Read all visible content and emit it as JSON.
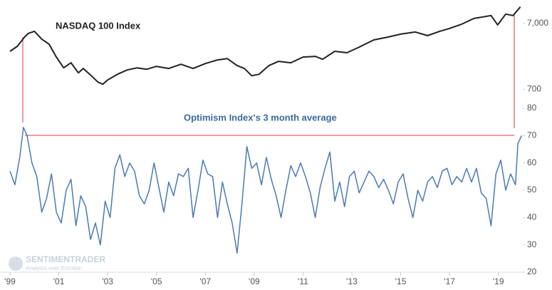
{
  "chart_data": [
    {
      "type": "line",
      "title": "NASDAQ 100 Index",
      "log_scale": true,
      "xlim": [
        1999,
        2020
      ],
      "ylim": [
        550,
        14000
      ],
      "yticks": [
        700,
        {
          "value": 7000,
          "label": "7,000"
        }
      ],
      "series": [
        {
          "name": "NASDAQ 100 Index",
          "color": "#222222",
          "x": [
            1999.0,
            1999.3,
            1999.6,
            1999.75,
            2000.0,
            2000.3,
            2000.6,
            2000.9,
            2001.2,
            2001.5,
            2001.8,
            2002.0,
            2002.3,
            2002.6,
            2002.8,
            2003.0,
            2003.4,
            2003.8,
            2004.2,
            2004.6,
            2005.0,
            2005.5,
            2006.0,
            2006.5,
            2007.0,
            2007.5,
            2007.9,
            2008.3,
            2008.6,
            2008.9,
            2009.2,
            2009.6,
            2010.0,
            2010.5,
            2011.0,
            2011.5,
            2011.8,
            2012.3,
            2012.8,
            2013.3,
            2013.9,
            2014.5,
            2015.0,
            2015.6,
            2016.1,
            2016.6,
            2017.0,
            2017.5,
            2018.0,
            2018.7,
            2018.97,
            2019.3,
            2019.6,
            2019.9
          ],
          "values": [
            2640,
            3140,
            4350,
            4930,
            5310,
            4040,
            3390,
            2160,
            1480,
            1770,
            1245,
            1450,
            1155,
            900,
            835,
            970,
            1185,
            1375,
            1480,
            1410,
            1560,
            1450,
            1680,
            1450,
            1720,
            1955,
            2050,
            1600,
            1450,
            1125,
            1185,
            1600,
            1860,
            1770,
            2160,
            2210,
            2000,
            2640,
            2510,
            3060,
            3935,
            4350,
            4810,
            5190,
            4570,
            5310,
            5870,
            6825,
            8330,
            9210,
            6650,
            9690,
            9210,
            12450
          ]
        }
      ]
    },
    {
      "type": "line",
      "title": "Optimism Index's 3 month average",
      "xlim": [
        1999,
        2020
      ],
      "ylim": [
        20,
        80
      ],
      "yticks": [
        20,
        30,
        40,
        50,
        60,
        70,
        80
      ],
      "xticks": [
        {
          "value": 1999,
          "label": "'99"
        },
        {
          "value": 2001,
          "label": "'01"
        },
        {
          "value": 2003,
          "label": "'03"
        },
        {
          "value": 2005,
          "label": "'05"
        },
        {
          "value": 2007,
          "label": "'07"
        },
        {
          "value": 2009,
          "label": "'09"
        },
        {
          "value": 2011,
          "label": "'11"
        },
        {
          "value": 2013,
          "label": "'13"
        },
        {
          "value": 2015,
          "label": "'15"
        },
        {
          "value": 2017,
          "label": "'17"
        },
        {
          "value": 2019,
          "label": "'19"
        }
      ],
      "series": [
        {
          "name": "Optimism Index's 3 month average",
          "color": "#4a7ab5",
          "x": [
            1999.0,
            1999.2,
            1999.4,
            1999.55,
            1999.7,
            1999.9,
            2000.1,
            2000.3,
            2000.5,
            2000.7,
            2000.9,
            2001.1,
            2001.3,
            2001.5,
            2001.7,
            2001.9,
            2002.1,
            2002.3,
            2002.5,
            2002.7,
            2002.9,
            2003.1,
            2003.3,
            2003.5,
            2003.7,
            2003.9,
            2004.1,
            2004.3,
            2004.5,
            2004.7,
            2004.9,
            2005.1,
            2005.3,
            2005.5,
            2005.7,
            2005.9,
            2006.1,
            2006.3,
            2006.5,
            2006.7,
            2006.9,
            2007.1,
            2007.3,
            2007.5,
            2007.7,
            2007.9,
            2008.1,
            2008.3,
            2008.5,
            2008.7,
            2008.9,
            2009.1,
            2009.3,
            2009.5,
            2009.7,
            2009.9,
            2010.1,
            2010.3,
            2010.5,
            2010.7,
            2010.9,
            2011.1,
            2011.3,
            2011.5,
            2011.7,
            2011.9,
            2012.1,
            2012.3,
            2012.5,
            2012.7,
            2012.9,
            2013.1,
            2013.3,
            2013.5,
            2013.7,
            2013.9,
            2014.1,
            2014.3,
            2014.5,
            2014.7,
            2014.9,
            2015.1,
            2015.3,
            2015.5,
            2015.7,
            2015.9,
            2016.1,
            2016.3,
            2016.5,
            2016.7,
            2016.9,
            2017.1,
            2017.3,
            2017.5,
            2017.7,
            2017.9,
            2018.1,
            2018.3,
            2018.5,
            2018.7,
            2018.9,
            2019.1,
            2019.3,
            2019.5,
            2019.7,
            2019.8,
            2019.95
          ],
          "values": [
            57,
            52,
            62,
            73,
            70,
            60,
            55,
            42,
            47,
            56,
            42,
            38,
            50,
            54,
            37,
            48,
            44,
            32,
            38,
            30,
            46,
            40,
            58,
            63,
            55,
            60,
            57,
            48,
            45,
            50,
            60,
            51,
            42,
            53,
            48,
            56,
            55,
            58,
            40,
            50,
            61,
            56,
            55,
            40,
            53,
            45,
            38,
            27,
            45,
            66,
            58,
            60,
            52,
            62,
            54,
            48,
            40,
            50,
            59,
            55,
            60,
            55,
            49,
            40,
            51,
            58,
            64,
            46,
            53,
            44,
            55,
            57,
            49,
            53,
            57,
            55,
            51,
            54,
            50,
            45,
            53,
            56,
            47,
            40,
            50,
            46,
            53,
            55,
            51,
            57,
            58,
            52,
            55,
            53,
            58,
            53,
            58,
            49,
            47,
            37,
            56,
            61,
            50,
            56,
            52,
            67,
            70
          ]
        }
      ]
    }
  ],
  "watermark": {
    "name": "SENTIMENTRADER",
    "tagline": "Analysis over Emotion"
  }
}
